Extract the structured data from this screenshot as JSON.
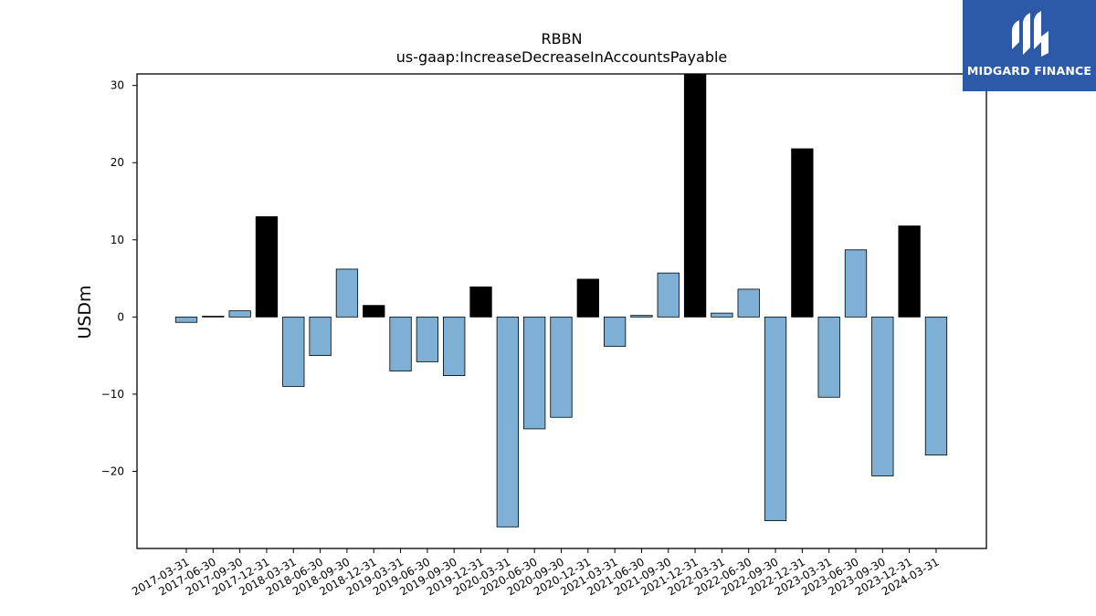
{
  "logo": {
    "text": "MIDGARD FINANCE",
    "background": "#2c5aa8"
  },
  "chart_data": {
    "type": "bar",
    "title": "RBBN",
    "subtitle": "us-gaap:IncreaseDecreaseInAccountsPayable",
    "ylabel": "USDm",
    "xlabel": "",
    "ylim": [
      -30,
      31.5
    ],
    "yticks": [
      -20,
      -10,
      0,
      10,
      20,
      30
    ],
    "grid": false,
    "colors": {
      "quarterly": "#7eb0d5",
      "annual": "#000000",
      "edge": "#000000"
    },
    "categories": [
      "2017-03-31",
      "2017-06-30",
      "2017-09-30",
      "2017-12-31",
      "2018-03-31",
      "2018-06-30",
      "2018-09-30",
      "2018-12-31",
      "2019-03-31",
      "2019-06-30",
      "2019-09-30",
      "2019-12-31",
      "2020-03-31",
      "2020-06-30",
      "2020-09-30",
      "2020-12-31",
      "2021-03-31",
      "2021-06-30",
      "2021-09-30",
      "2021-12-31",
      "2022-03-31",
      "2022-06-30",
      "2022-09-30",
      "2022-12-31",
      "2023-03-31",
      "2023-06-30",
      "2023-09-30",
      "2023-12-31",
      "2024-03-31"
    ],
    "values": [
      -0.7,
      0.1,
      0.8,
      13.0,
      -9.0,
      -5.0,
      6.2,
      1.5,
      -7.0,
      -5.8,
      -7.6,
      3.9,
      -27.2,
      -14.5,
      -13.0,
      4.9,
      -3.8,
      0.2,
      5.7,
      31.5,
      0.5,
      3.6,
      -26.4,
      21.8,
      -10.4,
      8.7,
      -20.6,
      11.8,
      -17.9
    ],
    "annual": [
      false,
      false,
      false,
      true,
      false,
      false,
      false,
      true,
      false,
      false,
      false,
      true,
      false,
      false,
      false,
      true,
      false,
      false,
      false,
      true,
      false,
      false,
      false,
      true,
      false,
      false,
      false,
      true,
      false
    ]
  }
}
